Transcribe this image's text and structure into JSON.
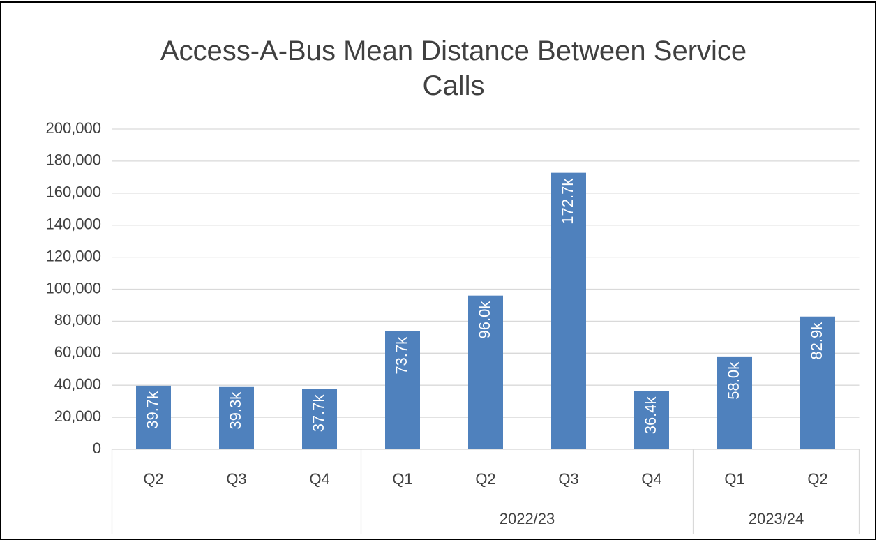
{
  "chart_data": {
    "type": "bar",
    "title": "Access-A-Bus Mean Distance Between Service Calls",
    "categories": [
      "Q2",
      "Q3",
      "Q4",
      "Q1",
      "Q2",
      "Q3",
      "Q4",
      "Q1",
      "Q2"
    ],
    "groups": [
      {
        "label": null,
        "count": 3
      },
      {
        "label": "2022/23",
        "count": 4
      },
      {
        "label": "2023/24",
        "count": 2
      }
    ],
    "values": [
      39700,
      39300,
      37700,
      73700,
      96000,
      172700,
      36400,
      58000,
      82900
    ],
    "value_labels": [
      "39.7k",
      "39.3k",
      "37.7k",
      "73.7k",
      "96.0k",
      "172.7k",
      "36.4k",
      "58.0k",
      "82.9k"
    ],
    "color": "#4f81bd",
    "ylim": [
      0,
      200000
    ],
    "yticks": [
      0,
      {
        "value": 20000,
        "label": "20,000"
      },
      {
        "value": 40000,
        "label": "40,000"
      },
      {
        "value": 60000,
        "label": "60,000"
      },
      {
        "value": 80000,
        "label": "80,000"
      },
      {
        "value": 100000,
        "label": "100,000"
      },
      {
        "value": 120000,
        "label": "120,000"
      },
      {
        "value": 140000,
        "label": "140,000"
      },
      {
        "value": 160000,
        "label": "160,000"
      },
      {
        "value": 180000,
        "label": "180,000"
      },
      {
        "value": 200000,
        "label": "200,000"
      }
    ],
    "grid": true
  }
}
